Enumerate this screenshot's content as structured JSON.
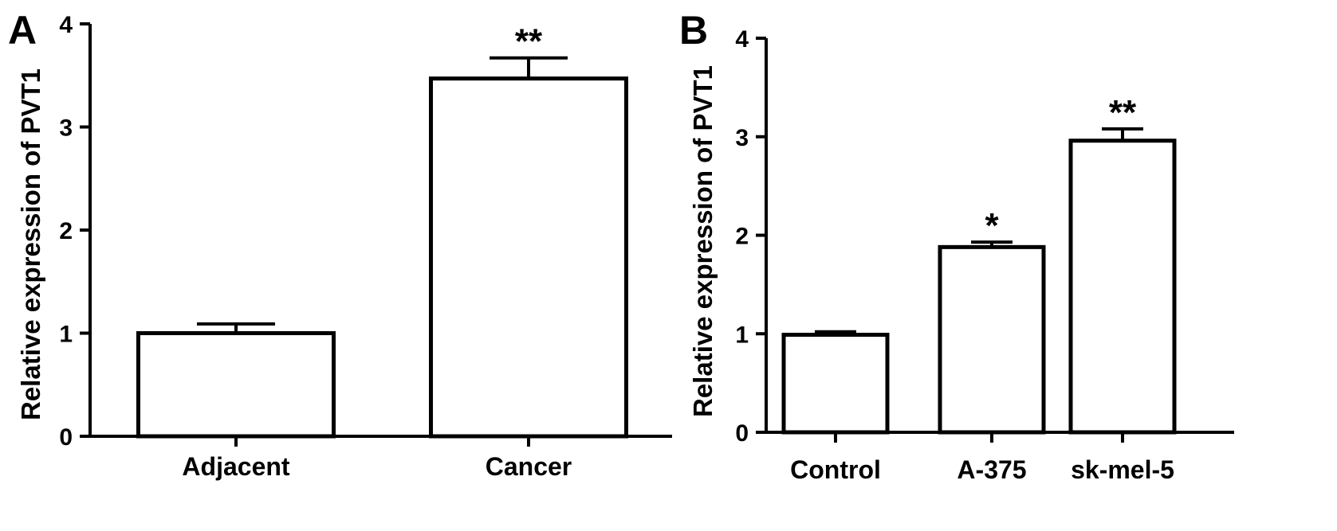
{
  "figure": {
    "panels": [
      "A",
      "B"
    ]
  },
  "chart_data": [
    {
      "type": "bar",
      "panel": "A",
      "title": "",
      "xlabel": "",
      "ylabel": "Relative expression of  PVT1",
      "ylim": [
        0,
        4
      ],
      "yticks": [
        0,
        1,
        2,
        3,
        4
      ],
      "categories": [
        "Adjacent",
        "Cancer"
      ],
      "values": [
        1.0,
        3.47
      ],
      "errors": [
        0.09,
        0.2
      ],
      "significance": [
        "",
        "**"
      ],
      "grid": false,
      "legend": "none"
    },
    {
      "type": "bar",
      "panel": "B",
      "title": "",
      "xlabel": "",
      "ylabel": "Relative expression of PVT1",
      "ylim": [
        0,
        4
      ],
      "yticks": [
        0,
        1,
        2,
        3,
        4
      ],
      "categories": [
        "Control",
        "A-375",
        "sk-mel-5"
      ],
      "values": [
        0.99,
        1.88,
        2.96
      ],
      "errors": [
        0.03,
        0.05,
        0.12
      ],
      "significance": [
        "",
        "*",
        "**"
      ],
      "grid": false,
      "legend": "none"
    }
  ]
}
